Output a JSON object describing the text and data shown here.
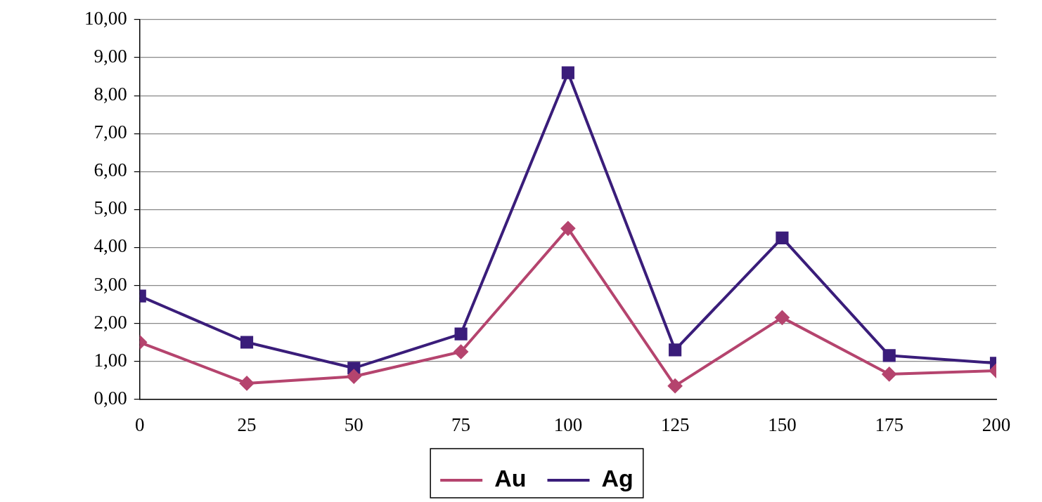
{
  "chart_data": {
    "type": "line",
    "x": [
      0,
      25,
      50,
      75,
      100,
      125,
      150,
      175,
      200
    ],
    "series": [
      {
        "name": "Au",
        "color": "#b5446e",
        "marker": "diamond",
        "values": [
          1.5,
          0.42,
          0.6,
          1.25,
          4.5,
          0.35,
          2.15,
          0.66,
          0.75
        ]
      },
      {
        "name": "Ag",
        "color": "#3a1d7a",
        "marker": "square",
        "values": [
          2.72,
          1.5,
          0.82,
          1.72,
          8.6,
          1.3,
          4.25,
          1.15,
          0.95
        ]
      }
    ],
    "xlim": [
      0,
      200
    ],
    "xticks": [
      0,
      25,
      50,
      75,
      100,
      125,
      150,
      175,
      200
    ],
    "ylim": [
      0,
      10
    ],
    "yticks": [
      {
        "value": 0,
        "label": "0,00"
      },
      {
        "value": 1,
        "label": "1,00"
      },
      {
        "value": 2,
        "label": "2,00"
      },
      {
        "value": 3,
        "label": "3,00"
      },
      {
        "value": 4,
        "label": "4,00"
      },
      {
        "value": 5,
        "label": "5,00"
      },
      {
        "value": 6,
        "label": "6,00"
      },
      {
        "value": 7,
        "label": "7,00"
      },
      {
        "value": 8,
        "label": "8,00"
      },
      {
        "value": 9,
        "label": "9,00"
      },
      {
        "value": 10,
        "label": "10,00"
      }
    ],
    "grid": "y",
    "legend": "bottom",
    "line_style": "solid"
  }
}
